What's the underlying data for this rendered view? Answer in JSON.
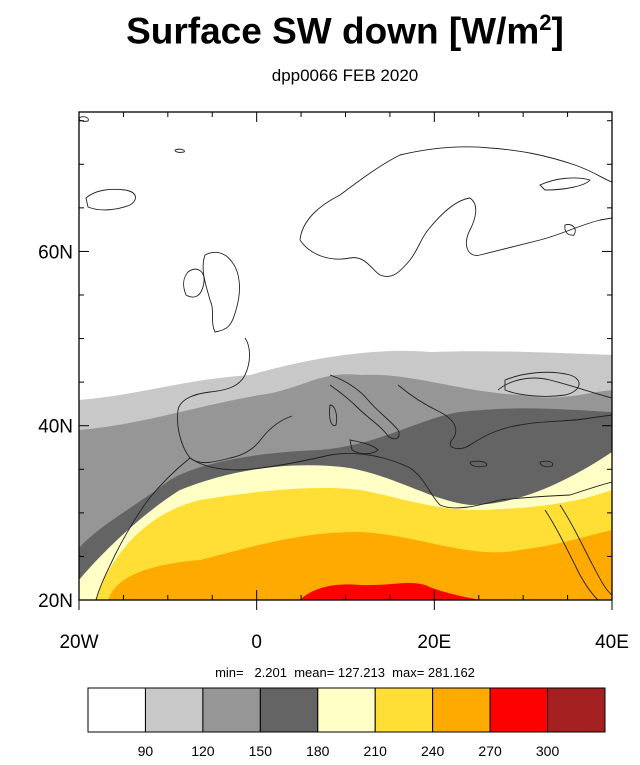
{
  "title": {
    "main": "Surface SW down [W/m",
    "sup": "2",
    "close": "]"
  },
  "subtitle": "dpp0066 FEB 2020",
  "map": {
    "lon_range": [
      -20,
      40
    ],
    "lat_range": [
      20,
      76
    ],
    "y_tick_labels": [
      {
        "lat": 60,
        "label": "60N"
      },
      {
        "lat": 40,
        "label": "40N"
      },
      {
        "lat": 20,
        "label": "20N"
      }
    ],
    "x_tick_labels": [
      {
        "lon": -20,
        "label": "20W"
      },
      {
        "lon": 0,
        "label": "0"
      },
      {
        "lon": 20,
        "label": "20E"
      },
      {
        "lon": 40,
        "label": "40E"
      }
    ],
    "colors": {
      "land_outline": "#222222",
      "field_bands": [
        "#ffffff",
        "#c8c8c8",
        "#969696",
        "#646464",
        "#ffffc6",
        "#ffdf36",
        "#ffaa00",
        "#ff0000",
        "#a52121"
      ]
    }
  },
  "stats": {
    "text": "min=   2.201  mean= 127.213  max= 281.162",
    "min": 2.201,
    "mean": 127.213,
    "max": 281.162
  },
  "colorbar": {
    "colors": [
      "#ffffff",
      "#c8c8c8",
      "#969696",
      "#646464",
      "#ffffc6",
      "#ffdf36",
      "#ffaa00",
      "#ff0000",
      "#a52121"
    ],
    "labels": [
      "90",
      "120",
      "150",
      "180",
      "210",
      "240",
      "270",
      "300"
    ]
  }
}
